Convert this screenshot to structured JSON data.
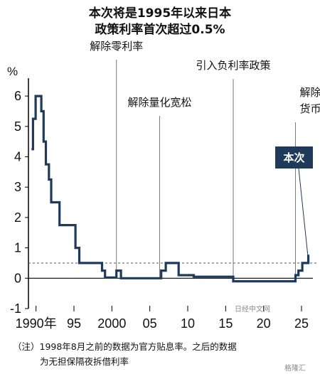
{
  "title": [
    "本次将是1995年以来日本",
    "政策利率首次超过0.5%"
  ],
  "chart_data": {
    "type": "line",
    "step": true,
    "ylabel": "%",
    "ylim": [
      -1,
      6.4
    ],
    "yticks": [
      6,
      5,
      4,
      3,
      2,
      1,
      0,
      -1
    ],
    "xlim": [
      1989,
      2026.5
    ],
    "xticks": [
      {
        "x": 1990,
        "label": "1990年"
      },
      {
        "x": 1995,
        "label": "95"
      },
      {
        "x": 2000,
        "label": "2000"
      },
      {
        "x": 2005,
        "label": "05"
      },
      {
        "x": 2010,
        "label": "10"
      },
      {
        "x": 2015,
        "label": "15"
      },
      {
        "x": 2020,
        "label": "20"
      },
      {
        "x": 2025,
        "label": "25"
      }
    ],
    "reference_line": {
      "y": 0.5,
      "style": "dashed"
    },
    "series": [
      {
        "color": "#1f3a5a",
        "points": [
          [
            1989.4,
            4.25
          ],
          [
            1989.6,
            4.25
          ],
          [
            1989.6,
            5.25
          ],
          [
            1989.95,
            5.25
          ],
          [
            1989.95,
            6.0
          ],
          [
            1990.7,
            6.0
          ],
          [
            1990.7,
            5.5
          ],
          [
            1991.0,
            5.5
          ],
          [
            1991.0,
            4.5
          ],
          [
            1991.3,
            4.5
          ],
          [
            1991.3,
            3.75
          ],
          [
            1991.7,
            3.75
          ],
          [
            1991.7,
            3.25
          ],
          [
            1992.0,
            3.25
          ],
          [
            1992.0,
            2.5
          ],
          [
            1993.1,
            2.5
          ],
          [
            1993.1,
            1.75
          ],
          [
            1995.2,
            1.75
          ],
          [
            1995.2,
            1.0
          ],
          [
            1995.7,
            1.0
          ],
          [
            1995.7,
            0.5
          ],
          [
            1998.7,
            0.5
          ],
          [
            1998.7,
            0.25
          ],
          [
            1999.1,
            0.25
          ],
          [
            1999.1,
            0.02
          ],
          [
            2000.6,
            0.02
          ],
          [
            2000.6,
            0.25
          ],
          [
            2001.2,
            0.25
          ],
          [
            2001.2,
            0.0
          ],
          [
            2006.5,
            0.0
          ],
          [
            2006.5,
            0.25
          ],
          [
            2007.1,
            0.25
          ],
          [
            2007.1,
            0.5
          ],
          [
            2008.8,
            0.5
          ],
          [
            2008.8,
            0.1
          ],
          [
            2010.8,
            0.1
          ],
          [
            2010.8,
            0.05
          ],
          [
            2016.0,
            0.05
          ],
          [
            2016.0,
            -0.1
          ],
          [
            2024.2,
            -0.1
          ],
          [
            2024.2,
            0.1
          ],
          [
            2024.6,
            0.1
          ],
          [
            2024.6,
            0.25
          ],
          [
            2025.1,
            0.25
          ],
          [
            2025.1,
            0.5
          ],
          [
            2025.9,
            0.5
          ],
          [
            2025.9,
            0.75
          ],
          [
            2026.0,
            0.75
          ]
        ]
      }
    ],
    "annotations": [
      {
        "text": [
          "解除零利率"
        ],
        "x": 2000.6
      },
      {
        "text": [
          "解除量化宽松"
        ],
        "x": 2006.3
      },
      {
        "text": [
          "引入负利率政策"
        ],
        "x": 2016.0
      },
      {
        "text": [
          "解除异次元",
          "货币宽松"
        ],
        "x": 2024.2
      }
    ],
    "badge": {
      "text": "本次",
      "bg": "#1f3a5a"
    }
  },
  "note": [
    "（注）1998年8月之前的数据为官方贴息率。之后的数据",
    "为无担保隔夜拆借利率"
  ],
  "watermarks": [
    "日经中文网",
    "格隆汇"
  ]
}
